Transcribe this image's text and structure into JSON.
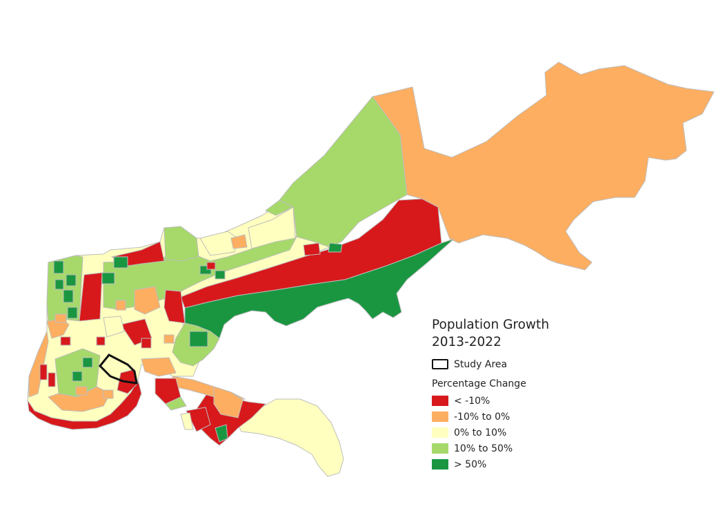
{
  "legend": {
    "title_line1": "Population Growth",
    "title_line2": "2013-2022",
    "study_area_label": "Study Area",
    "subtitle": "Percentage Change",
    "classes": [
      {
        "label": "< -10%",
        "color": "#d7191c"
      },
      {
        "label": "-10% to 0%",
        "color": "#fdae61"
      },
      {
        "label": "0% to 10%",
        "color": "#ffffbf"
      },
      {
        "label": "10% to 50%",
        "color": "#a6d96a"
      },
      {
        "label": "> 50%",
        "color": "#1a9641"
      }
    ]
  },
  "colors": {
    "decline_strong": "#d7191c",
    "decline": "#fdae61",
    "stable": "#ffffbf",
    "growth": "#a6d96a",
    "growth_strong": "#1a9641",
    "study_area_outline": "#111111",
    "boundary": "#bdbdbd"
  }
}
